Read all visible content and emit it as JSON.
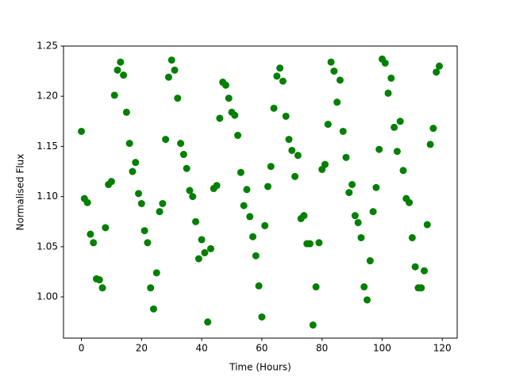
{
  "chart_data": {
    "type": "scatter",
    "xlabel": "Time (Hours)",
    "ylabel": "Normalised Flux",
    "color": "#008000",
    "x": [
      0,
      1,
      2,
      3,
      4,
      5,
      6,
      7,
      8,
      9,
      10,
      11,
      12,
      13,
      14,
      15,
      16,
      17,
      18,
      19,
      20,
      21,
      22,
      23,
      24,
      25,
      26,
      27,
      28,
      29,
      30,
      31,
      32,
      33,
      34,
      35,
      36,
      37,
      38,
      39,
      40,
      41,
      42,
      43,
      44,
      45,
      46,
      47,
      48,
      49,
      50,
      51,
      52,
      53,
      54,
      55,
      56,
      57,
      58,
      59,
      60,
      61,
      62,
      63,
      64,
      65,
      66,
      67,
      68,
      69,
      70,
      71,
      72,
      73,
      74,
      75,
      76,
      77,
      78,
      79,
      80,
      81,
      82,
      83,
      84,
      85,
      86,
      87,
      88,
      89,
      90,
      91,
      92,
      93,
      94,
      95,
      96,
      97,
      98,
      99,
      100,
      101,
      102,
      103,
      104,
      105,
      106,
      107,
      108,
      109,
      110,
      111,
      112,
      113,
      114,
      115,
      116,
      117,
      118,
      119
    ],
    "values": [
      1.165,
      1.098,
      1.094,
      1.0625,
      1.054,
      1.018,
      1.017,
      1.009,
      1.069,
      1.112,
      1.115,
      1.201,
      1.226,
      1.234,
      1.221,
      1.184,
      1.153,
      1.125,
      1.134,
      1.103,
      1.093,
      1.066,
      1.054,
      1.009,
      0.988,
      1.024,
      1.085,
      1.093,
      1.157,
      1.219,
      1.236,
      1.226,
      1.198,
      1.153,
      1.142,
      1.128,
      1.106,
      1.1,
      1.075,
      1.038,
      1.057,
      1.044,
      0.975,
      1.048,
      1.108,
      1.111,
      1.178,
      1.214,
      1.211,
      1.198,
      1.184,
      1.181,
      1.161,
      1.124,
      1.091,
      1.107,
      1.08,
      1.06,
      1.041,
      1.011,
      0.98,
      1.071,
      1.11,
      1.13,
      1.188,
      1.22,
      1.228,
      1.215,
      1.18,
      1.157,
      1.146,
      1.12,
      1.141,
      1.078,
      1.081,
      1.053,
      1.053,
      0.972,
      1.01,
      1.054,
      1.127,
      1.132,
      1.172,
      1.234,
      1.225,
      1.194,
      1.216,
      1.165,
      1.139,
      1.104,
      1.112,
      1.081,
      1.074,
      1.059,
      1.01,
      0.997,
      1.036,
      1.085,
      1.109,
      1.147,
      1.237,
      1.233,
      1.203,
      1.218,
      1.169,
      1.145,
      1.175,
      1.126,
      1.098,
      1.094,
      1.059,
      1.03,
      1.009,
      1.009,
      1.026,
      1.072,
      1.152,
      1.168,
      1.224,
      1.23
    ],
    "xlim": [
      -5.95,
      124.95
    ],
    "ylim": [
      0.9589,
      1.25
    ],
    "xticks": [
      0,
      20,
      40,
      60,
      80,
      100,
      120
    ],
    "yticks": [
      {
        "value": 1,
        "label": "1.00"
      },
      1.05,
      {
        "value": 1.1,
        "label": "1.10"
      },
      1.15,
      {
        "value": 1.2,
        "label": "1.20"
      },
      1.25
    ]
  }
}
